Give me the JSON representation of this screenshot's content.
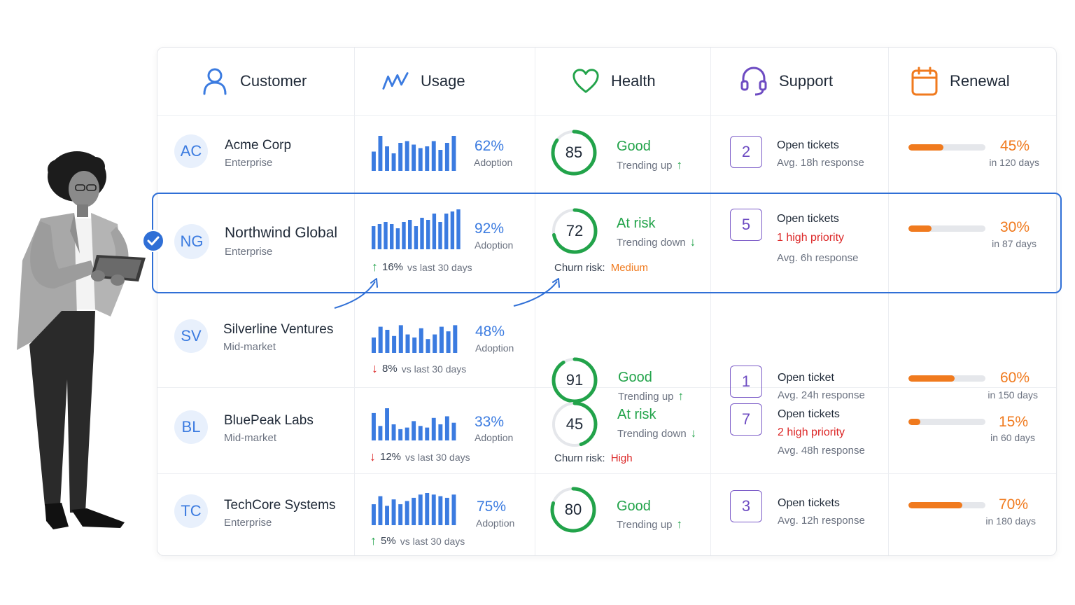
{
  "headers": [
    {
      "label": "Customer",
      "icon": "user-icon"
    },
    {
      "label": "Usage",
      "icon": "activity-icon"
    },
    {
      "label": "Health",
      "icon": "heart-icon"
    },
    {
      "label": "Support",
      "icon": "headset-icon"
    },
    {
      "label": "Renewal",
      "icon": "calendar-icon"
    }
  ],
  "colors": {
    "accent_blue": "#3b7be0",
    "good_green": "#22a34a",
    "risk_orange": "#f07a1e",
    "danger_red": "#dc2626",
    "support_purple": "#6d4bc2"
  },
  "rows": [
    {
      "initials": "AC",
      "name": "Acme Corp",
      "segment": "Enterprise",
      "usage": {
        "adoption": 62,
        "pct": "62%",
        "sub": "Adoption",
        "bars": [
          0.55,
          1.0,
          0.7,
          0.5,
          0.8,
          0.85,
          0.75,
          0.65,
          0.7,
          0.85,
          0.6,
          0.8,
          1.0
        ],
        "trend": null
      },
      "health": {
        "score": 85,
        "score_text": "85",
        "status": "Good",
        "trend": "Trending up",
        "trend_dir": "up",
        "churn": null
      },
      "support": {
        "count": "2",
        "label": "Open tickets",
        "priority": null,
        "avg": "Avg. 18h response"
      },
      "renewal": {
        "progress": 0.45,
        "pct": "45%",
        "days": "in 120 days"
      }
    },
    {
      "initials": "NG",
      "name": "Northwind Global",
      "segment": "Enterprise",
      "usage": {
        "adoption": 92,
        "pct": "92%",
        "sub": "Adoption",
        "bars": [
          0.55,
          0.6,
          0.65,
          0.6,
          0.5,
          0.65,
          0.7,
          0.55,
          0.75,
          0.7,
          0.85,
          0.65,
          0.85,
          0.9,
          0.95
        ],
        "trend": {
          "dir": "up",
          "value": "16%",
          "label": "vs last 30 days"
        }
      },
      "health": {
        "score": 72,
        "score_text": "72",
        "status": "At risk",
        "trend": "Trending down",
        "trend_dir": "down",
        "churn": {
          "label": "Churn risk:",
          "level": "Medium"
        }
      },
      "support": {
        "count": "5",
        "label": "Open tickets",
        "priority": "1 high priority",
        "avg": "Avg. 6h response"
      },
      "renewal": {
        "progress": 0.3,
        "pct": "30%",
        "days": "in 87 days"
      }
    },
    {
      "initials": "SV",
      "name": "Silverline Ventures",
      "segment": "Mid-market",
      "usage": {
        "adoption": 48,
        "pct": "48%",
        "sub": "Adoption",
        "bars": [
          0.5,
          0.85,
          0.75,
          0.55,
          0.9,
          0.6,
          0.5,
          0.8,
          0.45,
          0.6,
          0.85,
          0.7,
          0.9
        ],
        "trend": {
          "dir": "down",
          "value": "8%",
          "label": "vs last 30 days"
        }
      },
      "health": {
        "score": 91,
        "score_text": "91",
        "status": "Good",
        "trend": "Trending up",
        "trend_dir": "up",
        "churn": null
      },
      "support": {
        "count": "1",
        "label": "Open ticket",
        "priority": null,
        "avg": "Avg. 24h response"
      },
      "renewal": {
        "progress": 0.6,
        "pct": "60%",
        "days": "in 150 days"
      }
    },
    {
      "initials": "BL",
      "name": "BluePeak Labs",
      "segment": "Mid-market",
      "usage": {
        "adoption": 33,
        "pct": "33%",
        "sub": "Adoption",
        "bars": [
          0.85,
          0.45,
          1.0,
          0.5,
          0.35,
          0.4,
          0.6,
          0.45,
          0.4,
          0.7,
          0.5,
          0.75,
          0.55
        ],
        "trend": {
          "dir": "down",
          "value": "12%",
          "label": "vs last 30 days"
        }
      },
      "health": {
        "score": 45,
        "score_text": "45",
        "status": "At risk",
        "trend": "Trending down",
        "trend_dir": "down",
        "churn": {
          "label": "Churn risk:",
          "level": "High"
        }
      },
      "support": {
        "count": "7",
        "label": "Open tickets",
        "priority": "2 high priority",
        "avg": "Avg. 48h response"
      },
      "renewal": {
        "progress": 0.15,
        "pct": "15%",
        "days": "in 60 days"
      }
    },
    {
      "initials": "TC",
      "name": "TechCore Systems",
      "segment": "Enterprise",
      "usage": {
        "adoption": 75,
        "pct": "75%",
        "sub": "Adoption",
        "bars": [
          0.65,
          0.9,
          0.6,
          0.8,
          0.65,
          0.75,
          0.85,
          0.95,
          1.0,
          0.95,
          0.9,
          0.85,
          0.95
        ],
        "trend": {
          "dir": "up",
          "value": "5%",
          "label": "vs last 30 days"
        }
      },
      "health": {
        "score": 80,
        "score_text": "80",
        "status": "Good",
        "trend": "Trending up",
        "trend_dir": "up",
        "churn": null
      },
      "support": {
        "count": "3",
        "label": "Open tickets",
        "priority": null,
        "avg": "Avg. 12h response"
      },
      "renewal": {
        "progress": 0.7,
        "pct": "70%",
        "days": "in 180 days"
      }
    }
  ]
}
